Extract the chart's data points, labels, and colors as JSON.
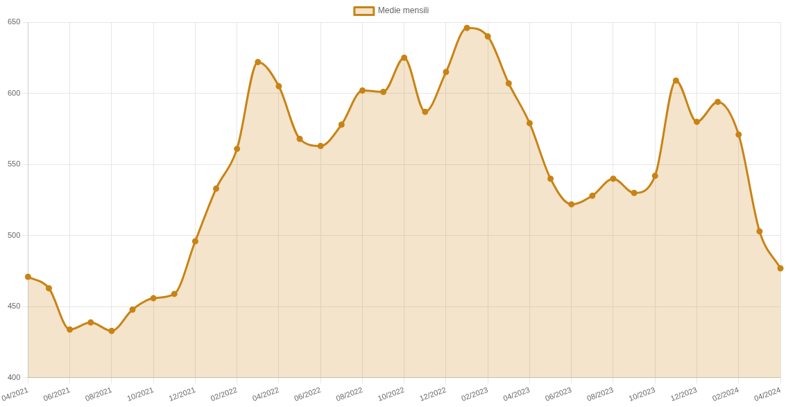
{
  "chart_data": {
    "type": "area",
    "categories": [
      "04/2021",
      null,
      "06/2021",
      null,
      "08/2021",
      null,
      "10/2021",
      null,
      "12/2021",
      null,
      "02/2022",
      null,
      "04/2022",
      null,
      "06/2022",
      null,
      "08/2022",
      null,
      "10/2022",
      null,
      "12/2022",
      null,
      "02/2023",
      null,
      "04/2023",
      null,
      "06/2023",
      null,
      "08/2023",
      null,
      "10/2023",
      null,
      "12/2023",
      null,
      "02/2024",
      null,
      "04/2024"
    ],
    "series": [
      {
        "name": "Medie mensili",
        "color": "#c98314",
        "values": [
          471,
          463,
          434,
          439,
          433,
          448,
          456,
          459,
          496,
          533,
          561,
          622,
          605,
          568,
          563,
          578,
          602,
          601,
          625,
          587,
          615,
          646,
          640,
          607,
          579,
          540,
          522,
          528,
          540,
          530,
          542,
          609,
          580,
          594,
          571,
          503,
          477
        ]
      }
    ],
    "ylim": [
      400,
      650
    ],
    "yticks": [
      400,
      450,
      500,
      550,
      600,
      650
    ],
    "grid": true,
    "legend": "top",
    "marker": "circle",
    "line_style": "solid"
  }
}
